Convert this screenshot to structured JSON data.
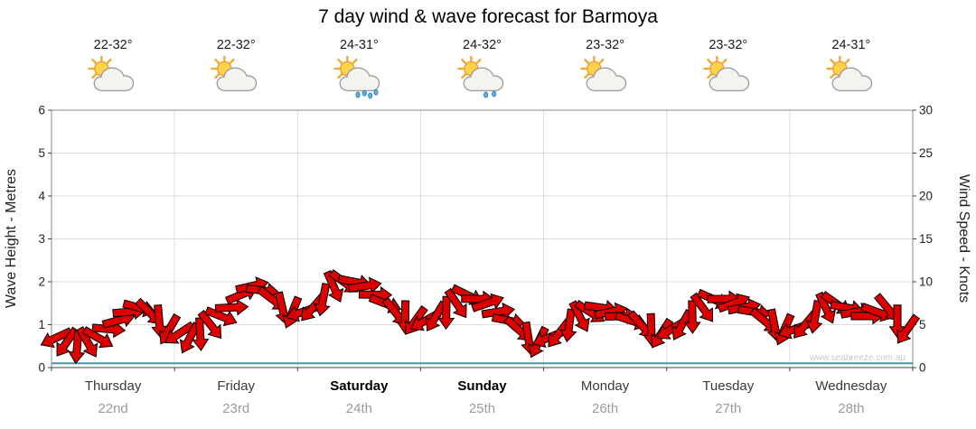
{
  "title": "7 day wind & wave forecast for Barmoya",
  "watermark": "www.seabreeze.com.au",
  "axes": {
    "left_label": "Wave Height - Metres",
    "right_label": "Wind Speed - Knots",
    "left_ticks": [
      0,
      1,
      2,
      3,
      4,
      5,
      6
    ],
    "right_ticks": [
      0,
      5,
      10,
      15,
      20,
      25,
      30
    ]
  },
  "days": [
    {
      "name": "Thursday",
      "date": "22nd",
      "temp": "22-32°",
      "icon": "partly-cloudy",
      "bold": false
    },
    {
      "name": "Friday",
      "date": "23rd",
      "temp": "22-32°",
      "icon": "partly-cloudy",
      "bold": false
    },
    {
      "name": "Saturday",
      "date": "24th",
      "temp": "24-31°",
      "icon": "rain",
      "bold": true
    },
    {
      "name": "Sunday",
      "date": "25th",
      "temp": "24-32°",
      "icon": "showers",
      "bold": true
    },
    {
      "name": "Monday",
      "date": "26th",
      "temp": "23-32°",
      "icon": "partly-cloudy",
      "bold": false
    },
    {
      "name": "Tuesday",
      "date": "27th",
      "temp": "23-32°",
      "icon": "partly-cloudy",
      "bold": false
    },
    {
      "name": "Wednesday",
      "date": "28th",
      "temp": "24-31°",
      "icon": "partly-cloudy",
      "bold": false
    }
  ],
  "chart_data": {
    "type": "wind-arrows",
    "title": "7 day wind & wave forecast for Barmoya",
    "points_per_day": 12,
    "interval_hours": 2,
    "ylim_wave_metres": [
      0,
      6
    ],
    "ylim_wind_knots": [
      0,
      30
    ],
    "grid": true,
    "legend": "none",
    "wind_speed_knots": [
      3.5,
      3,
      2.5,
      3,
      3.5,
      4.5,
      5.5,
      6.5,
      7,
      6.5,
      5.5,
      4.5,
      4,
      3.5,
      4,
      5,
      6,
      7,
      8.5,
      9.5,
      9,
      8,
      7,
      6.5,
      6.5,
      7,
      8,
      9.5,
      10,
      10,
      9.5,
      8.5,
      7.5,
      6.5,
      6,
      5.5,
      5.5,
      6,
      6.5,
      7.5,
      8.5,
      8,
      7.5,
      6.5,
      5.5,
      4.5,
      3.5,
      3,
      3.5,
      4,
      5,
      6,
      6.5,
      7,
      6.5,
      6,
      5.5,
      5,
      4.5,
      4,
      4.5,
      5,
      6,
      7,
      8,
      8,
      7.5,
      7,
      6.5,
      5.5,
      5,
      4.5,
      4.5,
      5,
      6,
      7,
      7.5,
      7,
      6.5,
      6,
      6.5,
      7,
      5.5,
      4.5
    ],
    "wind_direction_deg": [
      155,
      125,
      95,
      60,
      30,
      5,
      -15,
      -5,
      15,
      45,
      85,
      120,
      147,
      117,
      87,
      52,
      22,
      -3,
      -23,
      -13,
      7,
      37,
      77,
      112,
      161,
      131,
      101,
      66,
      36,
      11,
      -9,
      1,
      21,
      51,
      91,
      126,
      151,
      121,
      91,
      56,
      26,
      1,
      -19,
      -9,
      11,
      41,
      81,
      116,
      158,
      128,
      98,
      63,
      33,
      8,
      -12,
      -2,
      18,
      48,
      88,
      123,
      149,
      119,
      89,
      54,
      24,
      -1,
      -21,
      -11,
      9,
      39,
      79,
      114,
      160,
      130,
      100,
      65,
      35,
      10,
      -10,
      0,
      20,
      50,
      90,
      125
    ],
    "wave_height_metres_per_day": [
      0.1,
      0.1,
      0.1,
      0.1,
      0.1,
      0.1,
      0.1
    ],
    "colors": {
      "arrow_fill": "#dd0000",
      "arrow_stroke": "#000000",
      "wave_line": "#4596a8",
      "grid": "#dcdcdc",
      "frame": "#8a8a8a"
    }
  }
}
